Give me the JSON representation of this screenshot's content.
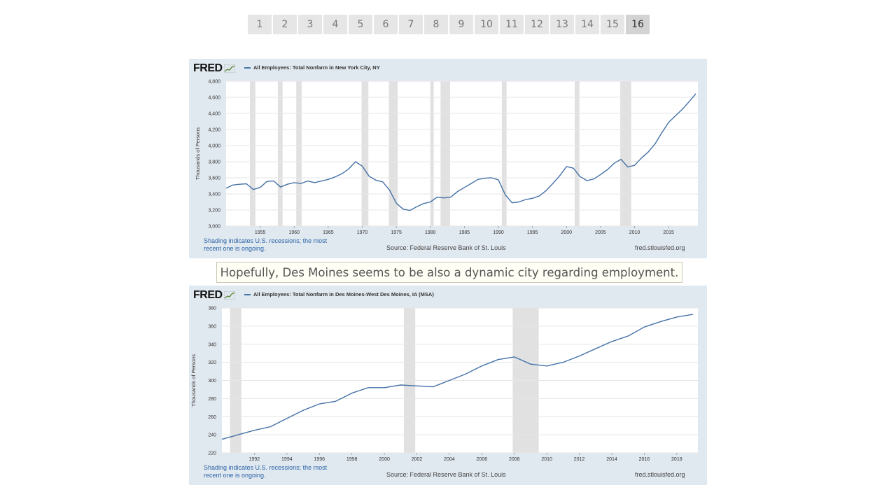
{
  "pagination": {
    "pages": [
      "1",
      "2",
      "3",
      "4",
      "5",
      "6",
      "7",
      "8",
      "9",
      "10",
      "11",
      "12",
      "13",
      "14",
      "15",
      "16"
    ],
    "active": "16"
  },
  "caption": "Hopefully, Des Moines seems to be also a dynamic city regarding employment.",
  "charts": [
    {
      "logo": "FRED",
      "series_title": "All Employees: Total Nonfarm in New York City, NY",
      "note": "Shading indicates U.S. recessions; the most recent one is ongoing.",
      "source": "Source: Federal Reserve Bank of St. Louis",
      "url": "fred.stlouisfed.org"
    },
    {
      "logo": "FRED",
      "series_title": "All Employees: Total Nonfarm in Des Moines-West Des Moines, IA (MSA)",
      "note": "Shading indicates U.S. recessions; the most recent one is ongoing.",
      "source": "Source: Federal Reserve Bank of St. Louis",
      "url": "fred.stlouisfed.org"
    }
  ],
  "chart_data": [
    {
      "type": "line",
      "title": "All Employees: Total Nonfarm in New York City, NY",
      "ylabel": "Thousands of Persons",
      "xlabel": "",
      "ylim": [
        3000,
        4800
      ],
      "xlim": [
        1950,
        2019.3
      ],
      "yticks": [
        3000,
        3200,
        3400,
        3600,
        3800,
        4000,
        4200,
        4400,
        4600,
        4800
      ],
      "ytick_labels": [
        "3,000",
        "3,200",
        "3,400",
        "3,600",
        "3,800",
        "4,000",
        "4,200",
        "4,400",
        "4,600",
        "4,800"
      ],
      "xticks": [
        1955,
        1960,
        1965,
        1970,
        1975,
        1980,
        1985,
        1990,
        1995,
        2000,
        2005,
        2010,
        2015
      ],
      "xtick_labels": [
        "1955",
        "1960",
        "1965",
        "1970",
        "1975",
        "1980",
        "1985",
        "1990",
        "1995",
        "2000",
        "2005",
        "2010",
        "2015"
      ],
      "grid": true,
      "line_color": "#4572a7",
      "recessions": [
        [
          1953.5,
          1954.3
        ],
        [
          1957.6,
          1958.3
        ],
        [
          1960.3,
          1961.1
        ],
        [
          1969.9,
          1970.9
        ],
        [
          1973.9,
          1975.2
        ],
        [
          1980.0,
          1980.5
        ],
        [
          1981.5,
          1982.9
        ],
        [
          1990.5,
          1991.2
        ],
        [
          2001.2,
          2001.9
        ],
        [
          2007.9,
          2009.5
        ]
      ],
      "series": [
        {
          "x": [
            1950,
            1951,
            1952,
            1953,
            1954,
            1955,
            1956,
            1957,
            1958,
            1959,
            1960,
            1961,
            1962,
            1963,
            1964,
            1965,
            1966,
            1967,
            1968,
            1969,
            1970,
            1971,
            1972,
            1973,
            1974,
            1975,
            1976,
            1977,
            1978,
            1979,
            1980,
            1981,
            1982,
            1983,
            1984,
            1985,
            1986,
            1987,
            1988,
            1989,
            1990,
            1991,
            1992,
            1993,
            1994,
            1995,
            1996,
            1997,
            1998,
            1999,
            2000,
            2001,
            2002,
            2003,
            2004,
            2005,
            2006,
            2007,
            2008,
            2009,
            2010,
            2011,
            2012,
            2013,
            2014,
            2015,
            2016,
            2017,
            2018,
            2019
          ],
          "values": [
            3470,
            3510,
            3520,
            3525,
            3455,
            3480,
            3555,
            3560,
            3485,
            3520,
            3540,
            3530,
            3560,
            3540,
            3560,
            3580,
            3610,
            3650,
            3710,
            3800,
            3745,
            3620,
            3570,
            3550,
            3450,
            3285,
            3210,
            3195,
            3240,
            3280,
            3300,
            3360,
            3350,
            3360,
            3430,
            3480,
            3530,
            3580,
            3595,
            3600,
            3575,
            3390,
            3290,
            3300,
            3330,
            3345,
            3375,
            3440,
            3530,
            3625,
            3740,
            3720,
            3615,
            3565,
            3585,
            3640,
            3700,
            3780,
            3830,
            3735,
            3755,
            3845,
            3920,
            4020,
            4160,
            4290,
            4370,
            4450,
            4545,
            4645
          ]
        }
      ]
    },
    {
      "type": "line",
      "title": "All Employees: Total Nonfarm in Des Moines-West Des Moines, IA (MSA)",
      "ylabel": "Thousands of Persons",
      "xlabel": "",
      "ylim": [
        220,
        380
      ],
      "xlim": [
        1990,
        2019.3
      ],
      "yticks": [
        220,
        240,
        260,
        280,
        300,
        320,
        340,
        360,
        380
      ],
      "ytick_labels": [
        "220",
        "240",
        "260",
        "280",
        "300",
        "320",
        "340",
        "360",
        "380"
      ],
      "xticks": [
        1992,
        1994,
        1996,
        1998,
        2000,
        2002,
        2004,
        2006,
        2008,
        2010,
        2012,
        2014,
        2016,
        2018
      ],
      "xtick_labels": [
        "1992",
        "1994",
        "1996",
        "1998",
        "2000",
        "2002",
        "2004",
        "2006",
        "2008",
        "2010",
        "2012",
        "2014",
        "2016",
        "2018"
      ],
      "grid": true,
      "line_color": "#4572a7",
      "recessions": [
        [
          1990.5,
          1991.2
        ],
        [
          2001.2,
          2001.9
        ],
        [
          2007.9,
          2009.5
        ]
      ],
      "series": [
        {
          "x": [
            1990,
            1991,
            1992,
            1993,
            1994,
            1995,
            1996,
            1997,
            1998,
            1999,
            2000,
            2001,
            2002,
            2003,
            2004,
            2005,
            2006,
            2007,
            2008,
            2009,
            2010,
            2011,
            2012,
            2013,
            2014,
            2015,
            2016,
            2017,
            2018,
            2019
          ],
          "values": [
            235,
            240,
            245,
            249,
            258,
            267,
            274,
            277,
            286,
            292,
            292,
            295,
            294,
            293,
            300,
            307,
            316,
            323,
            326,
            318,
            316,
            320,
            327,
            335,
            343,
            349,
            359,
            365,
            370,
            373
          ]
        }
      ]
    }
  ]
}
